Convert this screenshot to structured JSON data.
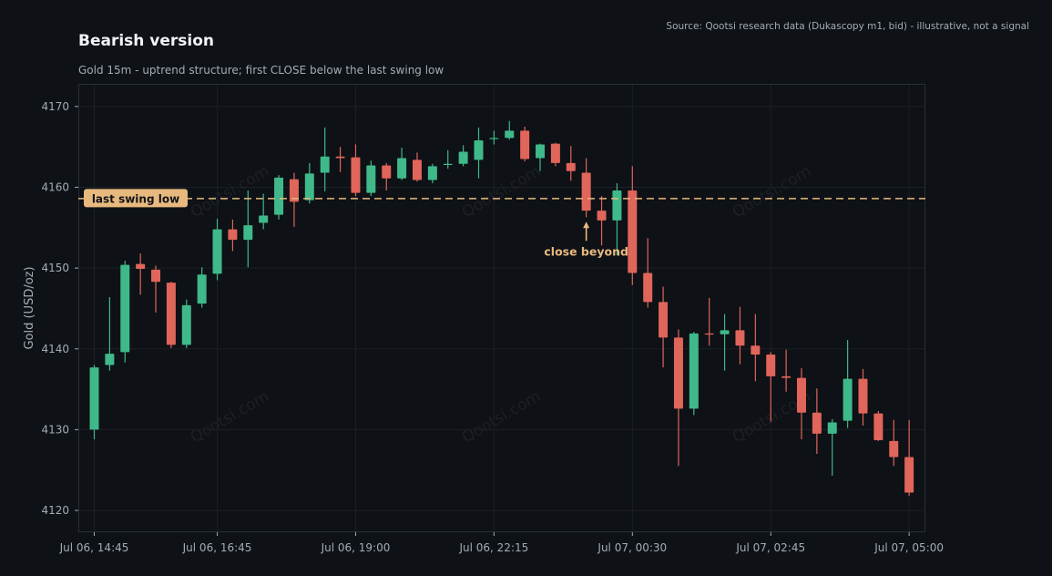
{
  "title": "Bearish version",
  "subtitle": "Gold 15m - uptrend structure; first CLOSE below the last swing low",
  "source": "Source: Qootsi research data (Dukascopy m1, bid) - illustrative, not a signal",
  "watermark": "Qootsi.com",
  "colors": {
    "background": "#0e1116",
    "up": "#3fb98a",
    "down": "#e0655a",
    "level": "#e8b97e",
    "grid": "#1c2027",
    "axis_text": "#a4acb6"
  },
  "chart_data": {
    "type": "candlestick",
    "title": "Bearish version",
    "subtitle": "Gold 15m - uptrend structure; first CLOSE below the last swing low",
    "ylabel": "Gold (USD/oz)",
    "xlabel": "",
    "ylim": [
      4117.3,
      4172.8
    ],
    "yticks": [
      4120,
      4130,
      4140,
      4150,
      4160,
      4170
    ],
    "grid": true,
    "interval_minutes": 15,
    "xticks": [
      {
        "index": 0,
        "label": "Jul 06, 14:45"
      },
      {
        "index": 8,
        "label": "Jul 06, 16:45"
      },
      {
        "index": 17,
        "label": "Jul 06, 19:00"
      },
      {
        "index": 26,
        "label": "Jul 06, 22:15"
      },
      {
        "index": 35,
        "label": "Jul 07, 00:30"
      },
      {
        "index": 44,
        "label": "Jul 07, 02:45"
      },
      {
        "index": 53,
        "label": "Jul 07, 05:00"
      }
    ],
    "candles": [
      {
        "o": 4130.0,
        "h": 4138.0,
        "l": 4128.8,
        "c": 4137.7
      },
      {
        "o": 4138.0,
        "h": 4146.4,
        "l": 4137.3,
        "c": 4139.4
      },
      {
        "o": 4139.6,
        "h": 4150.9,
        "l": 4138.3,
        "c": 4150.4
      },
      {
        "o": 4150.5,
        "h": 4151.8,
        "l": 4146.7,
        "c": 4149.9
      },
      {
        "o": 4149.8,
        "h": 4150.3,
        "l": 4144.5,
        "c": 4148.3
      },
      {
        "o": 4148.2,
        "h": 4148.3,
        "l": 4140.1,
        "c": 4140.5
      },
      {
        "o": 4140.5,
        "h": 4146.1,
        "l": 4140.1,
        "c": 4145.4
      },
      {
        "o": 4145.6,
        "h": 4150.1,
        "l": 4145.1,
        "c": 4149.2
      },
      {
        "o": 4149.3,
        "h": 4156.1,
        "l": 4148.5,
        "c": 4154.8
      },
      {
        "o": 4154.8,
        "h": 4156.0,
        "l": 4152.1,
        "c": 4153.5
      },
      {
        "o": 4153.5,
        "h": 4159.6,
        "l": 4150.1,
        "c": 4155.3
      },
      {
        "o": 4155.6,
        "h": 4159.2,
        "l": 4154.8,
        "c": 4156.5
      },
      {
        "o": 4156.6,
        "h": 4161.5,
        "l": 4156.0,
        "c": 4161.2
      },
      {
        "o": 4161.0,
        "h": 4161.8,
        "l": 4155.1,
        "c": 4158.2
      },
      {
        "o": 4158.4,
        "h": 4163.0,
        "l": 4158.0,
        "c": 4161.7
      },
      {
        "o": 4161.8,
        "h": 4167.4,
        "l": 4159.5,
        "c": 4163.8
      },
      {
        "o": 4163.8,
        "h": 4165.0,
        "l": 4161.9,
        "c": 4163.6
      },
      {
        "o": 4163.7,
        "h": 4165.3,
        "l": 4158.9,
        "c": 4159.3
      },
      {
        "o": 4159.3,
        "h": 4163.3,
        "l": 4158.9,
        "c": 4162.7
      },
      {
        "o": 4162.7,
        "h": 4163.0,
        "l": 4159.6,
        "c": 4161.1
      },
      {
        "o": 4161.1,
        "h": 4164.9,
        "l": 4160.9,
        "c": 4163.6
      },
      {
        "o": 4163.4,
        "h": 4164.3,
        "l": 4160.7,
        "c": 4160.9
      },
      {
        "o": 4160.9,
        "h": 4162.9,
        "l": 4160.5,
        "c": 4162.6
      },
      {
        "o": 4162.8,
        "h": 4164.6,
        "l": 4162.3,
        "c": 4162.9
      },
      {
        "o": 4162.9,
        "h": 4165.2,
        "l": 4162.6,
        "c": 4164.4
      },
      {
        "o": 4163.4,
        "h": 4167.4,
        "l": 4161.1,
        "c": 4165.8
      },
      {
        "o": 4166.0,
        "h": 4167.0,
        "l": 4165.3,
        "c": 4166.1
      },
      {
        "o": 4166.1,
        "h": 4168.2,
        "l": 4165.9,
        "c": 4167.0
      },
      {
        "o": 4167.0,
        "h": 4167.5,
        "l": 4163.2,
        "c": 4163.5
      },
      {
        "o": 4163.6,
        "h": 4165.4,
        "l": 4162.0,
        "c": 4165.3
      },
      {
        "o": 4165.4,
        "h": 4165.5,
        "l": 4162.6,
        "c": 4163.0
      },
      {
        "o": 4163.0,
        "h": 4165.1,
        "l": 4160.8,
        "c": 4162.0
      },
      {
        "o": 4161.8,
        "h": 4163.6,
        "l": 4156.3,
        "c": 4157.1
      },
      {
        "o": 4157.1,
        "h": 4158.9,
        "l": 4152.8,
        "c": 4155.9
      },
      {
        "o": 4155.9,
        "h": 4160.5,
        "l": 4151.6,
        "c": 4159.6
      },
      {
        "o": 4159.6,
        "h": 4162.6,
        "l": 4147.9,
        "c": 4149.4
      },
      {
        "o": 4149.4,
        "h": 4153.7,
        "l": 4145.1,
        "c": 4145.8
      },
      {
        "o": 4145.8,
        "h": 4147.7,
        "l": 4137.7,
        "c": 4141.4
      },
      {
        "o": 4141.4,
        "h": 4142.4,
        "l": 4125.5,
        "c": 4132.6
      },
      {
        "o": 4132.6,
        "h": 4142.1,
        "l": 4131.8,
        "c": 4141.9
      },
      {
        "o": 4141.9,
        "h": 4146.3,
        "l": 4140.4,
        "c": 4141.8
      },
      {
        "o": 4141.8,
        "h": 4144.3,
        "l": 4137.3,
        "c": 4142.3
      },
      {
        "o": 4142.3,
        "h": 4145.2,
        "l": 4138.1,
        "c": 4140.4
      },
      {
        "o": 4140.4,
        "h": 4144.3,
        "l": 4136.0,
        "c": 4139.3
      },
      {
        "o": 4139.3,
        "h": 4139.6,
        "l": 4131.0,
        "c": 4136.6
      },
      {
        "o": 4136.6,
        "h": 4139.9,
        "l": 4134.7,
        "c": 4136.4
      },
      {
        "o": 4136.4,
        "h": 4137.6,
        "l": 4128.8,
        "c": 4132.1
      },
      {
        "o": 4132.1,
        "h": 4135.1,
        "l": 4127.0,
        "c": 4129.5
      },
      {
        "o": 4129.5,
        "h": 4131.3,
        "l": 4124.3,
        "c": 4130.9
      },
      {
        "o": 4131.1,
        "h": 4141.1,
        "l": 4130.2,
        "c": 4136.3
      },
      {
        "o": 4136.3,
        "h": 4137.5,
        "l": 4130.5,
        "c": 4132.0
      },
      {
        "o": 4132.0,
        "h": 4132.3,
        "l": 4128.6,
        "c": 4128.7
      },
      {
        "o": 4128.6,
        "h": 4131.2,
        "l": 4125.5,
        "c": 4126.6
      },
      {
        "o": 4126.6,
        "h": 4131.2,
        "l": 4121.8,
        "c": 4122.2
      }
    ],
    "annotations": {
      "level": {
        "value": 4158.6,
        "label": "last swing low",
        "style": "dashed"
      },
      "arrow": {
        "index": 32,
        "label": "close beyond"
      }
    }
  }
}
